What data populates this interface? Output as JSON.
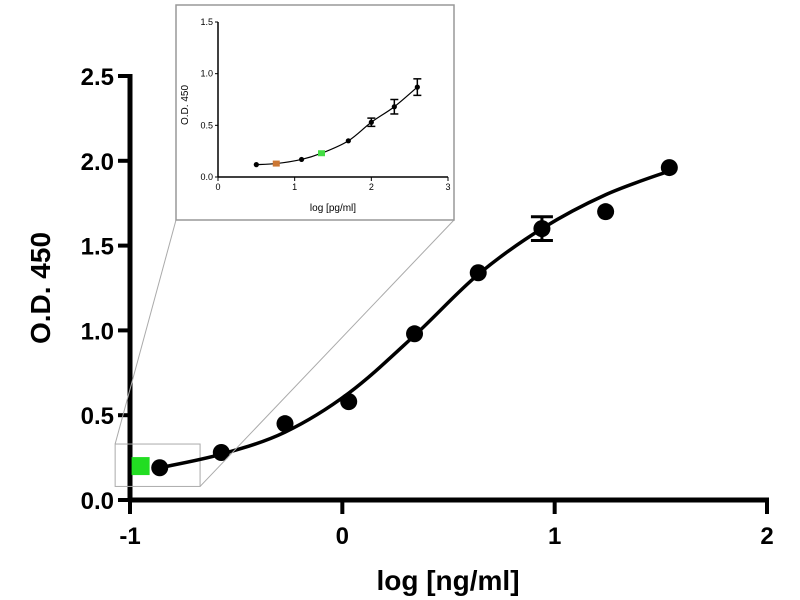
{
  "chart_data": [
    {
      "type": "scatter",
      "title": "",
      "xlabel": "log [ng/ml]",
      "ylabel": "O.D. 450",
      "xlim": [
        -1,
        2
      ],
      "ylim": [
        0,
        2.5
      ],
      "xticks": [
        "-1",
        "0",
        "1",
        "2"
      ],
      "yticks": [
        "0.0",
        "0.5",
        "1.0",
        "1.5",
        "2.0",
        "2.5"
      ],
      "grid": false,
      "points": [
        {
          "x": -0.86,
          "y": 0.19,
          "err": 0
        },
        {
          "x": -0.57,
          "y": 0.28,
          "err": 0
        },
        {
          "x": -0.27,
          "y": 0.45,
          "err": 0
        },
        {
          "x": 0.03,
          "y": 0.58,
          "err": 0
        },
        {
          "x": 0.34,
          "y": 0.98,
          "err": 0
        },
        {
          "x": 0.64,
          "y": 1.34,
          "err": 0
        },
        {
          "x": 0.94,
          "y": 1.6,
          "err": 0.07
        },
        {
          "x": 1.24,
          "y": 1.7,
          "err": 0
        },
        {
          "x": 1.54,
          "y": 1.96,
          "err": 0
        }
      ],
      "fit_curve": [
        {
          "x": -0.86,
          "y": 0.19
        },
        {
          "x": -0.57,
          "y": 0.27
        },
        {
          "x": -0.27,
          "y": 0.4
        },
        {
          "x": 0.03,
          "y": 0.63
        },
        {
          "x": 0.34,
          "y": 0.97
        },
        {
          "x": 0.64,
          "y": 1.33
        },
        {
          "x": 0.94,
          "y": 1.6
        },
        {
          "x": 1.24,
          "y": 1.8
        },
        {
          "x": 1.54,
          "y": 1.94
        }
      ],
      "highlight_point": {
        "x": -0.95,
        "y": 0.2,
        "color": "#22dd22"
      },
      "zoom_region": {
        "x": [
          -1.07,
          -0.67
        ],
        "y": [
          0.08,
          0.33
        ]
      }
    },
    {
      "type": "scatter",
      "title": "",
      "xlabel": "log [pg/ml]",
      "ylabel": "O.D. 450",
      "xlim": [
        0,
        3
      ],
      "ylim": [
        0,
        1.5
      ],
      "xticks": [
        "0",
        "1",
        "2",
        "3"
      ],
      "yticks": [
        "0.0",
        "0.5",
        "1.0",
        "1.5"
      ],
      "grid": false,
      "points": [
        {
          "x": 0.5,
          "y": 0.12,
          "err": 0,
          "color": "#000000"
        },
        {
          "x": 0.76,
          "y": 0.13,
          "err": 0,
          "color": "#cc7733"
        },
        {
          "x": 1.09,
          "y": 0.17,
          "err": 0,
          "color": "#000000"
        },
        {
          "x": 1.35,
          "y": 0.23,
          "err": 0,
          "color": "#44dd44"
        },
        {
          "x": 1.7,
          "y": 0.35,
          "err": 0,
          "color": "#000000"
        },
        {
          "x": 2.0,
          "y": 0.53,
          "err": 0.04,
          "color": "#000000"
        },
        {
          "x": 2.3,
          "y": 0.68,
          "err": 0.07,
          "color": "#000000"
        },
        {
          "x": 2.6,
          "y": 0.87,
          "err": 0.08,
          "color": "#000000"
        }
      ]
    }
  ]
}
